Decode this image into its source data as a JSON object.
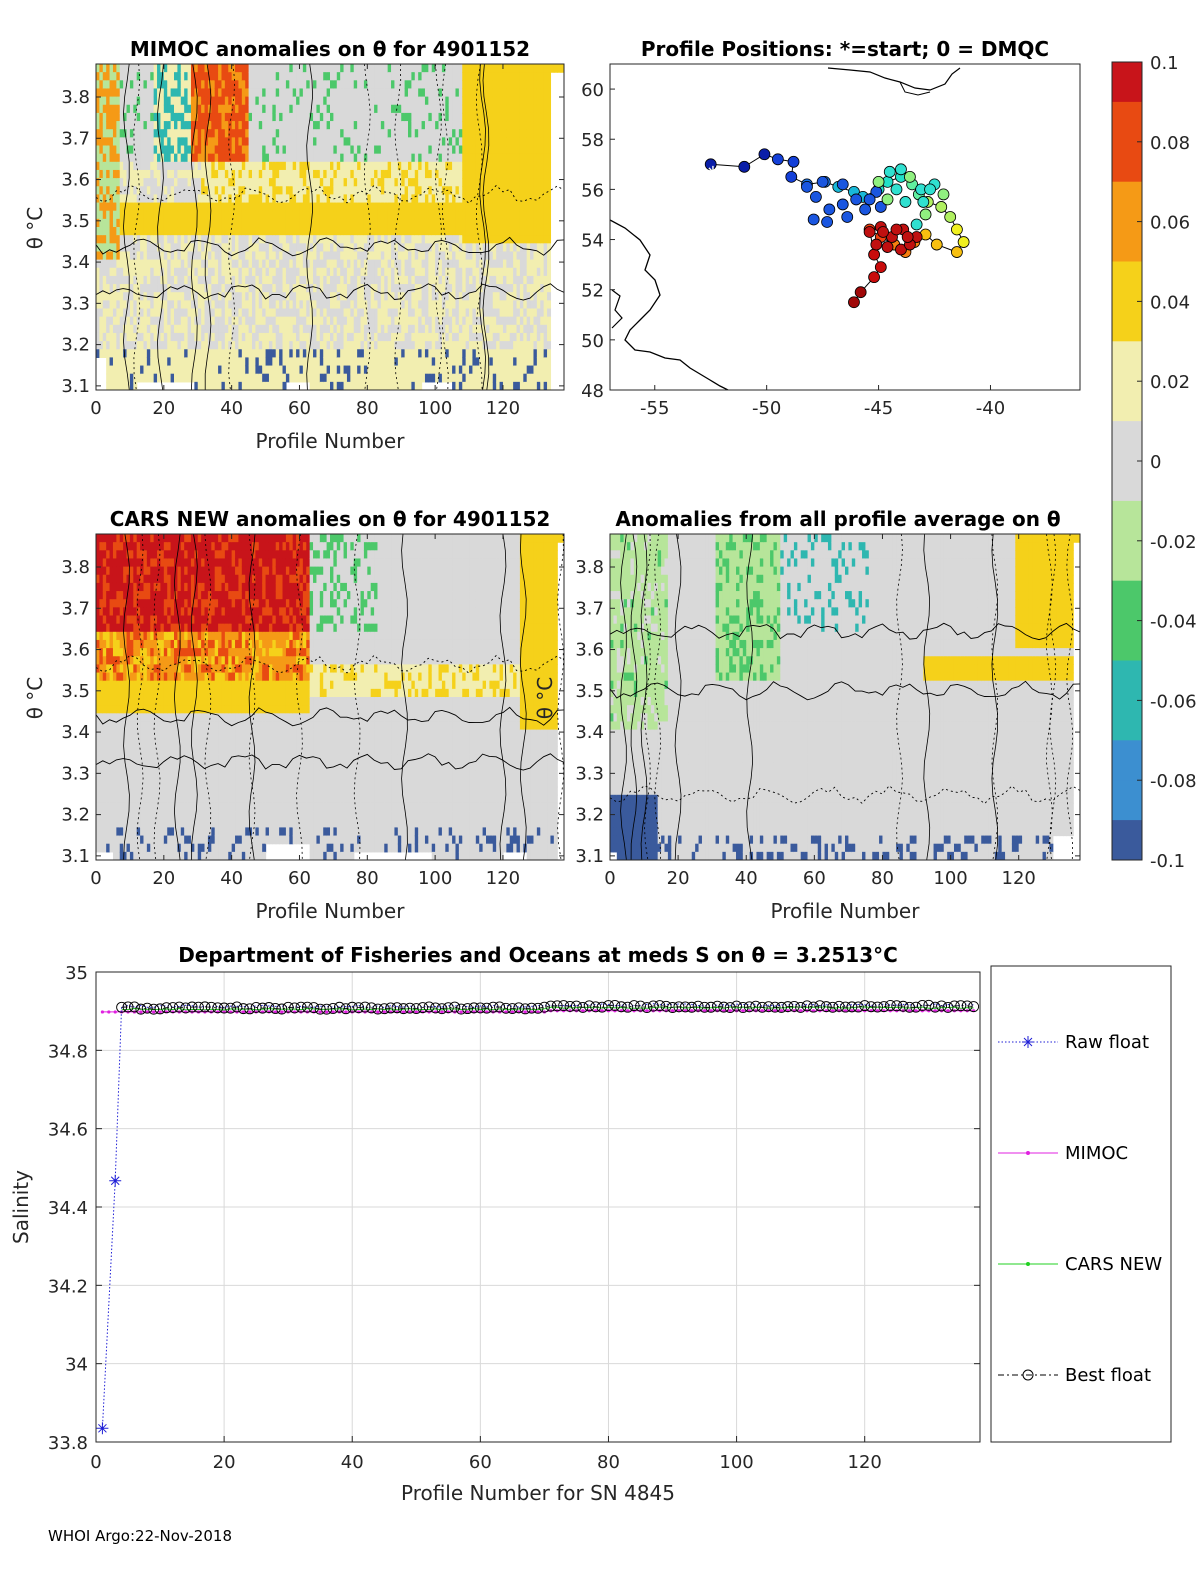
{
  "footer": "WHOI Argo:22-Nov-2018",
  "colormap": {
    "ticks": [
      "0.1",
      "0.08",
      "0.06",
      "0.04",
      "0.02",
      "0",
      "-0.02",
      "-0.04",
      "-0.06",
      "-0.08",
      "-0.1"
    ],
    "colors": [
      "#3a5a9c",
      "#3c8fd0",
      "#2eb7b0",
      "#4cc86a",
      "#b7e59a",
      "#d9d9d9",
      "#f2eeb0",
      "#f5d11a",
      "#f59a16",
      "#e84a12",
      "#c8141a"
    ]
  },
  "chart_data": [
    {
      "id": "mimoc",
      "type": "heatmap",
      "title": "MIMOC anomalies on θ  for 4901152",
      "xlabel": "Profile Number",
      "ylabel": "θ °C",
      "xlim": [
        0,
        138
      ],
      "ylim": [
        3.09,
        3.88
      ],
      "xticks": [
        "0",
        "20",
        "40",
        "60",
        "80",
        "100",
        "120"
      ],
      "yticks": [
        "3.1",
        "3.2",
        "3.3",
        "3.4",
        "3.5",
        "3.6",
        "3.7",
        "3.8"
      ]
    },
    {
      "id": "positions",
      "type": "scatter",
      "title": "Profile Positions: *=start; 0 = DMQC",
      "xlim": [
        -57,
        -36
      ],
      "ylim": [
        48,
        61
      ],
      "xticks": [
        "-55",
        "-50",
        "-45",
        "-40"
      ],
      "yticks": [
        "48",
        "50",
        "52",
        "54",
        "56",
        "58",
        "60"
      ],
      "track": [
        [
          -52.5,
          57.0
        ],
        [
          -51.0,
          56.9
        ],
        [
          -50.1,
          57.4
        ],
        [
          -49.5,
          57.2
        ],
        [
          -48.8,
          57.1
        ],
        [
          -48.9,
          56.5
        ],
        [
          -48.2,
          56.2
        ],
        [
          -47.4,
          56.3
        ],
        [
          -46.8,
          56.1
        ],
        [
          -46.1,
          55.9
        ],
        [
          -45.7,
          55.7
        ],
        [
          -45.0,
          56.0
        ],
        [
          -44.6,
          56.3
        ],
        [
          -44.0,
          56.5
        ],
        [
          -43.5,
          56.2
        ],
        [
          -43.2,
          55.8
        ],
        [
          -42.8,
          55.5
        ],
        [
          -42.2,
          55.3
        ],
        [
          -41.8,
          54.9
        ],
        [
          -41.5,
          54.4
        ],
        [
          -41.2,
          53.9
        ],
        [
          -41.5,
          53.5
        ],
        [
          -42.4,
          53.8
        ],
        [
          -42.9,
          54.2
        ],
        [
          -43.4,
          53.9
        ],
        [
          -43.8,
          53.5
        ],
        [
          -44.3,
          53.8
        ],
        [
          -44.9,
          54.1
        ],
        [
          -45.4,
          54.4
        ],
        [
          -45.2,
          53.4
        ],
        [
          -44.9,
          52.9
        ],
        [
          -45.2,
          52.5
        ],
        [
          -45.8,
          51.9
        ],
        [
          -46.1,
          51.5
        ]
      ],
      "cluster_blue": [
        [
          -48.2,
          56.1
        ],
        [
          -47.8,
          55.7
        ],
        [
          -47.2,
          55.2
        ],
        [
          -46.6,
          55.4
        ],
        [
          -46.0,
          55.6
        ],
        [
          -47.9,
          54.8
        ],
        [
          -47.3,
          54.7
        ],
        [
          -46.4,
          54.9
        ],
        [
          -45.6,
          55.2
        ],
        [
          -45.1,
          55.9
        ],
        [
          -47.5,
          56.3
        ],
        [
          -46.6,
          56.2
        ],
        [
          -45.4,
          55.6
        ],
        [
          -44.9,
          55.3
        ]
      ],
      "cluster_cyan": [
        [
          -45.0,
          56.3
        ],
        [
          -44.5,
          56.7
        ],
        [
          -44.0,
          56.8
        ],
        [
          -43.6,
          56.5
        ],
        [
          -44.2,
          56.0
        ],
        [
          -43.8,
          55.5
        ],
        [
          -44.6,
          55.6
        ],
        [
          -43.1,
          56.0
        ],
        [
          -42.5,
          56.2
        ],
        [
          -42.9,
          55.0
        ],
        [
          -43.3,
          54.6
        ],
        [
          -43.0,
          55.5
        ],
        [
          -42.1,
          55.8
        ],
        [
          -42.7,
          56.0
        ]
      ],
      "cluster_red": [
        [
          -45.4,
          54.3
        ],
        [
          -44.9,
          54.5
        ],
        [
          -44.4,
          54.1
        ],
        [
          -43.9,
          54.4
        ],
        [
          -43.3,
          54.1
        ],
        [
          -44.6,
          53.7
        ],
        [
          -44.0,
          53.6
        ],
        [
          -45.1,
          53.8
        ],
        [
          -43.6,
          53.8
        ],
        [
          -44.8,
          54.3
        ],
        [
          -43.7,
          54.1
        ],
        [
          -44.2,
          54.4
        ]
      ],
      "start": [
        -52.4,
        56.7
      ],
      "coast_label": ""
    },
    {
      "id": "cars",
      "type": "heatmap",
      "title": "CARS NEW anomalies on θ for 4901152",
      "xlabel": "Profile Number",
      "ylabel": "θ °C",
      "xlim": [
        0,
        138
      ],
      "ylim": [
        3.09,
        3.88
      ],
      "xticks": [
        "0",
        "20",
        "40",
        "60",
        "80",
        "100",
        "120"
      ],
      "yticks": [
        "3.1",
        "3.2",
        "3.3",
        "3.4",
        "3.5",
        "3.6",
        "3.7",
        "3.8"
      ]
    },
    {
      "id": "avg",
      "type": "heatmap",
      "title": "Anomalies from all profile average on θ",
      "xlabel": "Profile Number",
      "ylabel": "θ °C",
      "xlim": [
        0,
        138
      ],
      "ylim": [
        3.09,
        3.88
      ],
      "xticks": [
        "0",
        "20",
        "40",
        "60",
        "80",
        "100",
        "120"
      ],
      "yticks": [
        "3.1",
        "3.2",
        "3.3",
        "3.4",
        "3.5",
        "3.6",
        "3.7",
        "3.8"
      ]
    },
    {
      "id": "salinity",
      "type": "line",
      "title": "Department of Fisheries and Oceans at meds S on θ = 3.2513°C",
      "xlabel": "Profile Number for SN 4845",
      "ylabel": "Salinity",
      "xlim": [
        0,
        138
      ],
      "ylim": [
        33.8,
        35.0
      ],
      "xticks": [
        "0",
        "20",
        "40",
        "60",
        "80",
        "100",
        "120"
      ],
      "yticks": [
        "35",
        "34.8",
        "34.6",
        "34.4",
        "34.2",
        "34",
        "33.8"
      ],
      "raw_float_start": [
        [
          1,
          33.835
        ],
        [
          3,
          34.467
        ],
        [
          4,
          34.912
        ]
      ],
      "raw_float_level": 34.912,
      "mimoc_level": 34.898,
      "cars_level": 34.905,
      "best_float_level": 34.908,
      "n_profiles": 137,
      "series": [
        {
          "name": "Raw float",
          "color": "#1f1fd6"
        },
        {
          "name": "MIMOC",
          "color": "#e020e0"
        },
        {
          "name": "CARS NEW",
          "color": "#20d020"
        },
        {
          "name": "Best float",
          "color": "#000000"
        }
      ]
    }
  ]
}
